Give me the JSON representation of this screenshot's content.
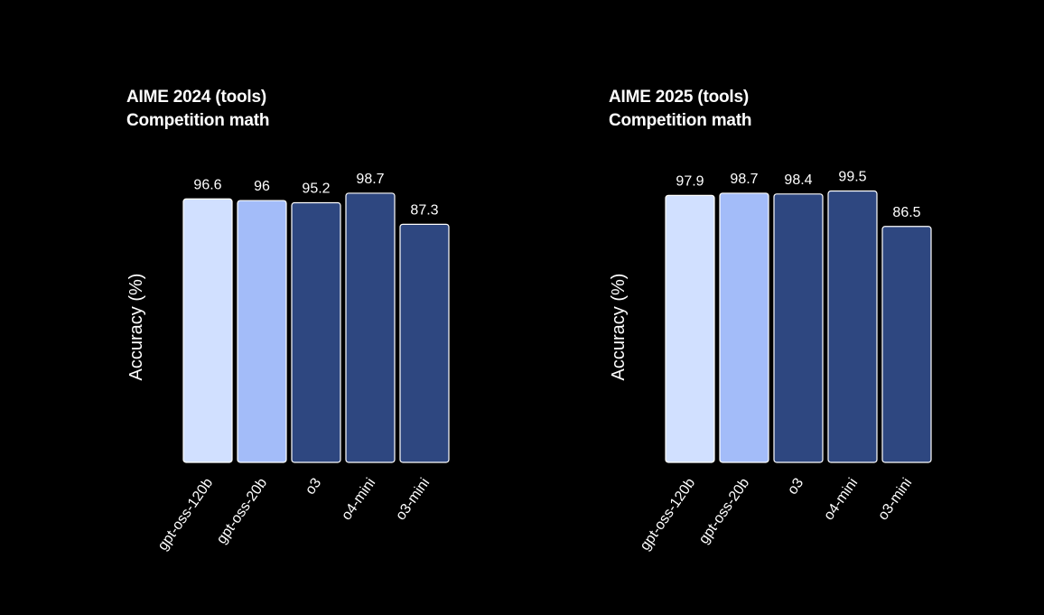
{
  "chart_data": [
    {
      "type": "bar",
      "title": "AIME 2024 (tools)",
      "subtitle": "Competition math",
      "xlabel": "",
      "ylabel": "Accuracy (%)",
      "ylim": [
        0,
        100
      ],
      "grid": false,
      "categories": [
        "gpt-oss-120b",
        "gpt-oss-20b",
        "o3",
        "o4-mini",
        "o3-mini"
      ],
      "values": [
        96.6,
        96,
        95.2,
        98.7,
        87.3
      ],
      "value_labels": [
        "96.6",
        "96",
        "95.2",
        "98.7",
        "87.3"
      ],
      "bar_colors": [
        "#d1e0ff",
        "#a3bcf9",
        "#2e4780",
        "#2e4780",
        "#2e4780"
      ]
    },
    {
      "type": "bar",
      "title": "AIME 2025 (tools)",
      "subtitle": "Competition math",
      "xlabel": "",
      "ylabel": "Accuracy (%)",
      "ylim": [
        0,
        100
      ],
      "grid": false,
      "categories": [
        "gpt-oss-120b",
        "gpt-oss-20b",
        "o3",
        "o4-mini",
        "o3-mini"
      ],
      "values": [
        97.9,
        98.7,
        98.4,
        99.5,
        86.5
      ],
      "value_labels": [
        "97.9",
        "98.7",
        "98.4",
        "99.5",
        "86.5"
      ],
      "bar_colors": [
        "#d1e0ff",
        "#a3bcf9",
        "#2e4780",
        "#2e4780",
        "#2e4780"
      ]
    }
  ],
  "colors": {
    "background": "#000000",
    "text": "#ffffff",
    "bar_border": "#ffffff"
  }
}
